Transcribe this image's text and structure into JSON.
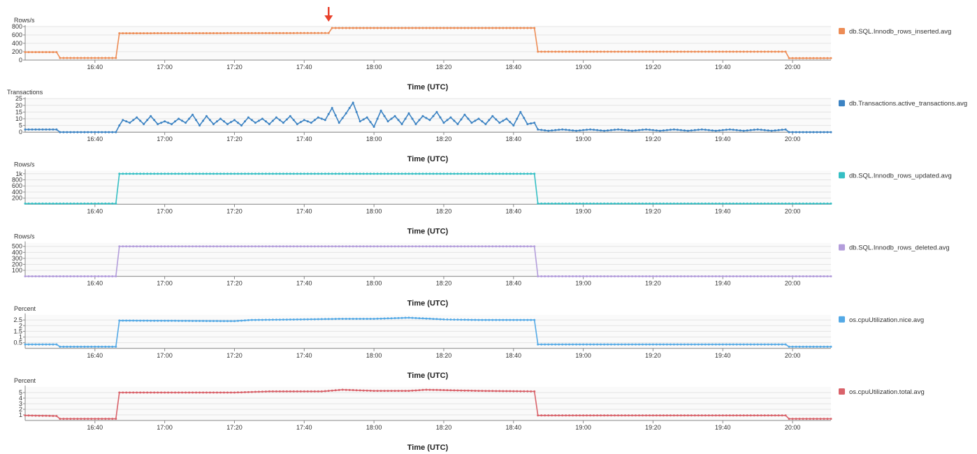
{
  "marker": {
    "color": "#e8412c",
    "x_time": "17:47"
  },
  "chart_data": [
    {
      "type": "line",
      "ylabel": "Rows/s",
      "xlabel": "Time (UTC)",
      "yticks": [
        {
          "v": 0,
          "label": "0"
        },
        {
          "v": 200,
          "label": "200"
        },
        {
          "v": 400,
          "label": "400"
        },
        {
          "v": 600,
          "label": "600"
        },
        {
          "v": 800,
          "label": "800"
        }
      ],
      "ylim": [
        0,
        800
      ],
      "xlim": [
        "16:20",
        "20:11"
      ],
      "xticks": [
        "16:40",
        "17:00",
        "17:20",
        "17:40",
        "18:00",
        "18:20",
        "18:40",
        "19:00",
        "19:20",
        "19:40",
        "20:00"
      ],
      "series": [
        {
          "name": "db.SQL.Innodb_rows_inserted.avg",
          "color": "#ed8c55",
          "points": [
            [
              "16:20",
              190
            ],
            [
              "16:29",
              190
            ],
            [
              "16:30",
              50
            ],
            [
              "16:46",
              50
            ],
            [
              "16:47",
              640
            ],
            [
              "17:47",
              645
            ],
            [
              "17:48",
              765
            ],
            [
              "18:46",
              765
            ],
            [
              "18:47",
              200
            ],
            [
              "19:58",
              200
            ],
            [
              "19:59",
              45
            ],
            [
              "20:11",
              45
            ]
          ]
        }
      ]
    },
    {
      "type": "line",
      "ylabel": "Transactions",
      "xlabel": "Time (UTC)",
      "yticks": [
        {
          "v": 0,
          "label": "0"
        },
        {
          "v": 5,
          "label": "5"
        },
        {
          "v": 10,
          "label": "10"
        },
        {
          "v": 15,
          "label": "15"
        },
        {
          "v": 20,
          "label": "20"
        },
        {
          "v": 25,
          "label": "25"
        }
      ],
      "ylim": [
        0,
        25
      ],
      "xlim": [
        "16:20",
        "20:11"
      ],
      "xticks": [
        "16:40",
        "17:00",
        "17:20",
        "17:40",
        "18:00",
        "18:20",
        "18:40",
        "19:00",
        "19:20",
        "19:40",
        "20:00"
      ],
      "series": [
        {
          "name": "db.Transactions.active_transactions.avg",
          "color": "#3c83c3",
          "points": [
            [
              "16:20",
              2
            ],
            [
              "16:29",
              2
            ],
            [
              "16:30",
              0
            ],
            [
              "16:46",
              0
            ],
            [
              "16:47",
              5
            ],
            [
              "16:48",
              9
            ],
            [
              "16:50",
              7
            ],
            [
              "16:52",
              11
            ],
            [
              "16:54",
              6
            ],
            [
              "16:56",
              12
            ],
            [
              "16:58",
              6
            ],
            [
              "17:00",
              8
            ],
            [
              "17:02",
              6
            ],
            [
              "17:04",
              10
            ],
            [
              "17:06",
              7
            ],
            [
              "17:08",
              13
            ],
            [
              "17:10",
              5
            ],
            [
              "17:12",
              12
            ],
            [
              "17:14",
              6
            ],
            [
              "17:16",
              10
            ],
            [
              "17:18",
              6
            ],
            [
              "17:20",
              9
            ],
            [
              "17:22",
              5
            ],
            [
              "17:24",
              11
            ],
            [
              "17:26",
              7
            ],
            [
              "17:28",
              10
            ],
            [
              "17:30",
              6
            ],
            [
              "17:32",
              11
            ],
            [
              "17:34",
              7
            ],
            [
              "17:36",
              12
            ],
            [
              "17:38",
              6
            ],
            [
              "17:40",
              9
            ],
            [
              "17:42",
              7
            ],
            [
              "17:44",
              11
            ],
            [
              "17:46",
              9
            ],
            [
              "17:48",
              18
            ],
            [
              "17:50",
              7
            ],
            [
              "17:52",
              14
            ],
            [
              "17:54",
              22
            ],
            [
              "17:56",
              8
            ],
            [
              "17:58",
              11
            ],
            [
              "18:00",
              4
            ],
            [
              "18:02",
              16
            ],
            [
              "18:04",
              8
            ],
            [
              "18:06",
              12
            ],
            [
              "18:08",
              6
            ],
            [
              "18:10",
              14
            ],
            [
              "18:12",
              6
            ],
            [
              "18:14",
              12
            ],
            [
              "18:16",
              9
            ],
            [
              "18:18",
              15
            ],
            [
              "18:20",
              7
            ],
            [
              "18:22",
              11
            ],
            [
              "18:24",
              6
            ],
            [
              "18:26",
              13
            ],
            [
              "18:28",
              7
            ],
            [
              "18:30",
              10
            ],
            [
              "18:32",
              6
            ],
            [
              "18:34",
              12
            ],
            [
              "18:36",
              7
            ],
            [
              "18:38",
              10
            ],
            [
              "18:40",
              5
            ],
            [
              "18:42",
              15
            ],
            [
              "18:44",
              6
            ],
            [
              "18:46",
              7
            ],
            [
              "18:47",
              2
            ],
            [
              "18:50",
              1
            ],
            [
              "18:54",
              2
            ],
            [
              "18:58",
              1
            ],
            [
              "19:02",
              2
            ],
            [
              "19:06",
              1
            ],
            [
              "19:10",
              2
            ],
            [
              "19:14",
              1
            ],
            [
              "19:18",
              2
            ],
            [
              "19:22",
              1
            ],
            [
              "19:26",
              2
            ],
            [
              "19:30",
              1
            ],
            [
              "19:34",
              2
            ],
            [
              "19:38",
              1
            ],
            [
              "19:42",
              2
            ],
            [
              "19:46",
              1
            ],
            [
              "19:50",
              2
            ],
            [
              "19:54",
              1
            ],
            [
              "19:58",
              2
            ],
            [
              "19:59",
              0
            ],
            [
              "20:11",
              0
            ]
          ]
        }
      ]
    },
    {
      "type": "line",
      "ylabel": "Rows/s",
      "xlabel": "Time (UTC)",
      "yticks": [
        {
          "v": 200,
          "label": "200"
        },
        {
          "v": 400,
          "label": "400"
        },
        {
          "v": 600,
          "label": "600"
        },
        {
          "v": 800,
          "label": "800"
        },
        {
          "v": 1000,
          "label": "1k"
        }
      ],
      "ylim": [
        0,
        1100
      ],
      "xlim": [
        "16:20",
        "20:11"
      ],
      "xticks": [
        "16:40",
        "17:00",
        "17:20",
        "17:40",
        "18:00",
        "18:20",
        "18:40",
        "19:00",
        "19:20",
        "19:40",
        "20:00"
      ],
      "series": [
        {
          "name": "db.SQL.Innodb_rows_updated.avg",
          "color": "#35bfc4",
          "points": [
            [
              "16:20",
              20
            ],
            [
              "16:46",
              20
            ],
            [
              "16:47",
              1000
            ],
            [
              "18:46",
              1000
            ],
            [
              "18:47",
              20
            ],
            [
              "20:11",
              20
            ]
          ]
        }
      ]
    },
    {
      "type": "line",
      "ylabel": "Rows/s",
      "xlabel": "Time (UTC)",
      "yticks": [
        {
          "v": 100,
          "label": "100"
        },
        {
          "v": 200,
          "label": "200"
        },
        {
          "v": 300,
          "label": "300"
        },
        {
          "v": 400,
          "label": "400"
        },
        {
          "v": 500,
          "label": "500"
        }
      ],
      "ylim": [
        0,
        560
      ],
      "xlim": [
        "16:20",
        "20:11"
      ],
      "xticks": [
        "16:40",
        "17:00",
        "17:20",
        "17:40",
        "18:00",
        "18:20",
        "18:40",
        "19:00",
        "19:20",
        "19:40",
        "20:00"
      ],
      "series": [
        {
          "name": "db.SQL.Innodb_rows_deleted.avg",
          "color": "#b39ddb",
          "points": [
            [
              "16:20",
              0
            ],
            [
              "16:46",
              0
            ],
            [
              "16:47",
              500
            ],
            [
              "18:46",
              500
            ],
            [
              "18:47",
              0
            ],
            [
              "20:11",
              0
            ]
          ]
        }
      ]
    },
    {
      "type": "line",
      "ylabel": "Percent",
      "xlabel": "Time (UTC)",
      "yticks": [
        {
          "v": 0.5,
          "label": "0.5"
        },
        {
          "v": 1,
          "label": "1"
        },
        {
          "v": 1.5,
          "label": "1.5"
        },
        {
          "v": 2,
          "label": "2"
        },
        {
          "v": 2.5,
          "label": "2.5"
        }
      ],
      "ylim": [
        0,
        2.95
      ],
      "xlim": [
        "16:20",
        "20:11"
      ],
      "xticks": [
        "16:40",
        "17:00",
        "17:20",
        "17:40",
        "18:00",
        "18:20",
        "18:40",
        "19:00",
        "19:20",
        "19:40",
        "20:00"
      ],
      "series": [
        {
          "name": "os.cpuUtilization.nice.avg",
          "color": "#53a9e6",
          "points": [
            [
              "16:20",
              0.35
            ],
            [
              "16:29",
              0.35
            ],
            [
              "16:30",
              0.15
            ],
            [
              "16:46",
              0.15
            ],
            [
              "16:47",
              2.45
            ],
            [
              "17:20",
              2.4
            ],
            [
              "17:25",
              2.5
            ],
            [
              "17:40",
              2.55
            ],
            [
              "17:50",
              2.6
            ],
            [
              "18:00",
              2.6
            ],
            [
              "18:10",
              2.7
            ],
            [
              "18:20",
              2.55
            ],
            [
              "18:30",
              2.5
            ],
            [
              "18:46",
              2.5
            ],
            [
              "18:47",
              0.35
            ],
            [
              "19:58",
              0.35
            ],
            [
              "19:59",
              0.15
            ],
            [
              "20:11",
              0.15
            ]
          ]
        }
      ]
    },
    {
      "type": "line",
      "ylabel": "Percent",
      "xlabel": "Time (UTC)",
      "yticks": [
        {
          "v": 1,
          "label": "1"
        },
        {
          "v": 2,
          "label": "2"
        },
        {
          "v": 3,
          "label": "3"
        },
        {
          "v": 4,
          "label": "4"
        },
        {
          "v": 5,
          "label": "5"
        }
      ],
      "ylim": [
        0,
        6
      ],
      "xlim": [
        "16:20",
        "20:11"
      ],
      "xticks": [
        "16:40",
        "17:00",
        "17:20",
        "17:40",
        "18:00",
        "18:20",
        "18:40",
        "19:00",
        "19:20",
        "19:40",
        "20:00"
      ],
      "series": [
        {
          "name": "os.cpuUtilization.total.avg",
          "color": "#d9626a",
          "points": [
            [
              "16:20",
              0.9
            ],
            [
              "16:29",
              0.8
            ],
            [
              "16:30",
              0.3
            ],
            [
              "16:46",
              0.3
            ],
            [
              "16:47",
              5.0
            ],
            [
              "17:00",
              5.0
            ],
            [
              "17:20",
              5.0
            ],
            [
              "17:30",
              5.2
            ],
            [
              "17:45",
              5.2
            ],
            [
              "17:51",
              5.5
            ],
            [
              "18:00",
              5.3
            ],
            [
              "18:10",
              5.3
            ],
            [
              "18:15",
              5.5
            ],
            [
              "18:30",
              5.3
            ],
            [
              "18:46",
              5.2
            ],
            [
              "18:47",
              0.9
            ],
            [
              "19:58",
              0.9
            ],
            [
              "19:59",
              0.3
            ],
            [
              "20:11",
              0.3
            ]
          ]
        }
      ]
    }
  ]
}
